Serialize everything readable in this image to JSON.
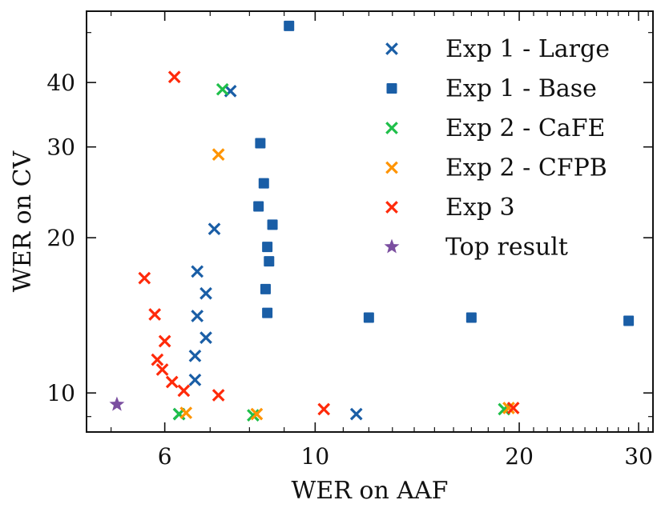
{
  "chart_data": {
    "type": "scatter",
    "title": "",
    "xlabel": "WER on AAF",
    "ylabel": "WER on CV",
    "xscale": "log",
    "yscale": "log",
    "xlim": [
      4.6,
      31.5
    ],
    "ylim": [
      8.4,
      55
    ],
    "xticks": [
      6,
      10,
      20,
      30
    ],
    "xtick_labels": [
      "6",
      "10",
      "20",
      "30"
    ],
    "yticks": [
      10,
      20,
      30,
      40
    ],
    "ytick_labels": [
      "10",
      "20",
      "30",
      "40"
    ],
    "legend_position": "top-right",
    "series": [
      {
        "name": "Exp 1 - Large",
        "marker": "x",
        "color": "#1a5ea6",
        "points": [
          [
            7.5,
            38.5
          ],
          [
            7.1,
            20.8
          ],
          [
            6.7,
            17.2
          ],
          [
            6.9,
            15.6
          ],
          [
            6.7,
            14.1
          ],
          [
            6.9,
            12.8
          ],
          [
            6.65,
            11.8
          ],
          [
            6.65,
            10.6
          ],
          [
            6.3,
            9.1
          ],
          [
            11.5,
            9.1
          ]
        ]
      },
      {
        "name": "Exp 1 - Base",
        "marker": "square",
        "color": "#1a5ea6",
        "points": [
          [
            9.15,
            51.5
          ],
          [
            8.3,
            30.5
          ],
          [
            8.4,
            25.5
          ],
          [
            8.25,
            23.0
          ],
          [
            8.65,
            21.2
          ],
          [
            8.5,
            19.2
          ],
          [
            8.55,
            18.0
          ],
          [
            8.45,
            15.9
          ],
          [
            8.5,
            14.3
          ],
          [
            12.0,
            14.0
          ],
          [
            17.0,
            14.0
          ],
          [
            29.0,
            13.8
          ]
        ]
      },
      {
        "name": "Exp 2 - CaFE",
        "marker": "x",
        "color": "#1fbf4a",
        "points": [
          [
            7.3,
            38.8
          ],
          [
            6.3,
            9.1
          ],
          [
            8.1,
            9.05
          ],
          [
            19.0,
            9.3
          ]
        ]
      },
      {
        "name": "Exp 2 - CFPB",
        "marker": "x",
        "color": "#ff9400",
        "points": [
          [
            7.2,
            29.0
          ],
          [
            6.45,
            9.15
          ],
          [
            8.2,
            9.1
          ],
          [
            19.3,
            9.35
          ]
        ]
      },
      {
        "name": "Exp 3",
        "marker": "x",
        "color": "#ff2a0a",
        "points": [
          [
            6.2,
            41.0
          ],
          [
            5.6,
            16.7
          ],
          [
            5.8,
            14.2
          ],
          [
            6.0,
            12.6
          ],
          [
            5.85,
            11.6
          ],
          [
            5.95,
            11.1
          ],
          [
            6.15,
            10.5
          ],
          [
            6.4,
            10.1
          ],
          [
            7.2,
            9.9
          ],
          [
            10.3,
            9.3
          ],
          [
            19.6,
            9.35
          ]
        ]
      },
      {
        "name": "Top result",
        "marker": "star",
        "color": "#7b4fa0",
        "points": [
          [
            5.1,
            9.5
          ]
        ]
      }
    ]
  }
}
